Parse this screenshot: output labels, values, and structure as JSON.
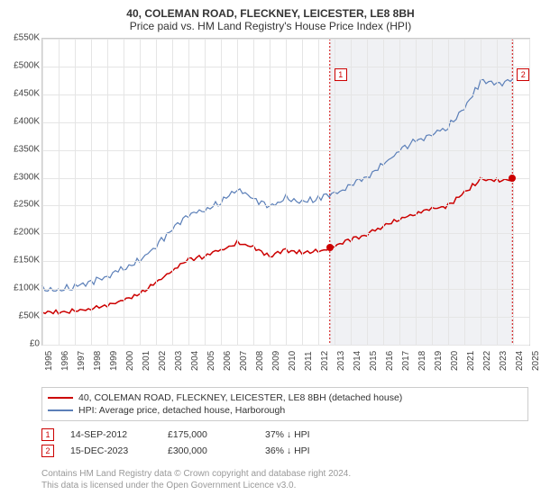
{
  "title": "40, COLEMAN ROAD, FLECKNEY, LEICESTER, LE8 8BH",
  "subtitle": "Price paid vs. HM Land Registry's House Price Index (HPI)",
  "chart": {
    "type": "line",
    "background_color": "#ffffff",
    "grid_color": "#e5e5e5",
    "shade_color": "#f0f1f4",
    "border_color": "#cccccc",
    "ylim": [
      0,
      550000
    ],
    "ytick_step": 50000,
    "ytick_labels": [
      "£0",
      "£50K",
      "£100K",
      "£150K",
      "£200K",
      "£250K",
      "£300K",
      "£350K",
      "£400K",
      "£450K",
      "£500K",
      "£550K"
    ],
    "xlim": [
      1995,
      2025
    ],
    "xtick_step": 1,
    "xtick_labels": [
      "1995",
      "1996",
      "1997",
      "1998",
      "1999",
      "2000",
      "2001",
      "2002",
      "2003",
      "2004",
      "2005",
      "2006",
      "2007",
      "2008",
      "2009",
      "2010",
      "2011",
      "2012",
      "2013",
      "2014",
      "2015",
      "2016",
      "2017",
      "2018",
      "2019",
      "2020",
      "2021",
      "2022",
      "2023",
      "2024",
      "2025"
    ],
    "vertical_dash_color": "#cc0000",
    "vertical_dash_positions": [
      2012.71,
      2023.96
    ],
    "series": [
      {
        "name": "price_paid",
        "color": "#cc0000",
        "width": 1.5,
        "points": [
          [
            1995,
            60000
          ],
          [
            1996,
            61000
          ],
          [
            1997,
            63000
          ],
          [
            1998,
            67000
          ],
          [
            1999,
            72000
          ],
          [
            2000,
            82000
          ],
          [
            2001,
            94000
          ],
          [
            2002,
            115000
          ],
          [
            2003,
            135000
          ],
          [
            2004,
            155000
          ],
          [
            2005,
            160000
          ],
          [
            2006,
            172000
          ],
          [
            2007,
            185000
          ],
          [
            2008,
            178000
          ],
          [
            2009,
            160000
          ],
          [
            2010,
            172000
          ],
          [
            2011,
            168000
          ],
          [
            2012,
            170000
          ],
          [
            2012.71,
            175000
          ],
          [
            2013,
            178000
          ],
          [
            2014,
            190000
          ],
          [
            2015,
            200000
          ],
          [
            2016,
            215000
          ],
          [
            2017,
            228000
          ],
          [
            2018,
            238000
          ],
          [
            2019,
            245000
          ],
          [
            2020,
            252000
          ],
          [
            2021,
            275000
          ],
          [
            2022,
            300000
          ],
          [
            2023,
            298000
          ],
          [
            2023.96,
            300000
          ],
          [
            2024,
            305000
          ]
        ]
      },
      {
        "name": "hpi",
        "color": "#5b7fb8",
        "width": 1.2,
        "points": [
          [
            1995,
            105000
          ],
          [
            1996,
            103000
          ],
          [
            1997,
            108000
          ],
          [
            1998,
            115000
          ],
          [
            1999,
            125000
          ],
          [
            2000,
            140000
          ],
          [
            2001,
            155000
          ],
          [
            2002,
            180000
          ],
          [
            2003,
            210000
          ],
          [
            2004,
            235000
          ],
          [
            2005,
            245000
          ],
          [
            2006,
            260000
          ],
          [
            2007,
            282000
          ],
          [
            2008,
            265000
          ],
          [
            2009,
            250000
          ],
          [
            2010,
            268000
          ],
          [
            2011,
            262000
          ],
          [
            2012,
            265000
          ],
          [
            2013,
            272000
          ],
          [
            2014,
            290000
          ],
          [
            2015,
            305000
          ],
          [
            2016,
            328000
          ],
          [
            2017,
            350000
          ],
          [
            2018,
            370000
          ],
          [
            2019,
            380000
          ],
          [
            2020,
            395000
          ],
          [
            2021,
            430000
          ],
          [
            2022,
            475000
          ],
          [
            2023,
            470000
          ],
          [
            2024,
            478000
          ]
        ]
      }
    ],
    "sale_markers": [
      {
        "label": "1",
        "x": 2012.71,
        "y": 175000,
        "box_y": 82
      },
      {
        "label": "2",
        "x": 2023.96,
        "y": 300000,
        "box_y": 82
      }
    ]
  },
  "legend": {
    "items": [
      {
        "color": "#cc0000",
        "label": "40, COLEMAN ROAD, FLECKNEY, LEICESTER, LE8 8BH (detached house)"
      },
      {
        "color": "#5b7fb8",
        "label": "HPI: Average price, detached house, Harborough"
      }
    ]
  },
  "data_rows": [
    {
      "marker": "1",
      "date": "14-SEP-2012",
      "price": "£175,000",
      "delta": "37% ↓ HPI"
    },
    {
      "marker": "2",
      "date": "15-DEC-2023",
      "price": "£300,000",
      "delta": "36% ↓ HPI"
    }
  ],
  "footer": {
    "line1": "Contains HM Land Registry data © Crown copyright and database right 2024.",
    "line2": "This data is licensed under the Open Government Licence v3.0."
  },
  "fontsize": {
    "title": 12,
    "axis": 10,
    "legend": 10
  }
}
